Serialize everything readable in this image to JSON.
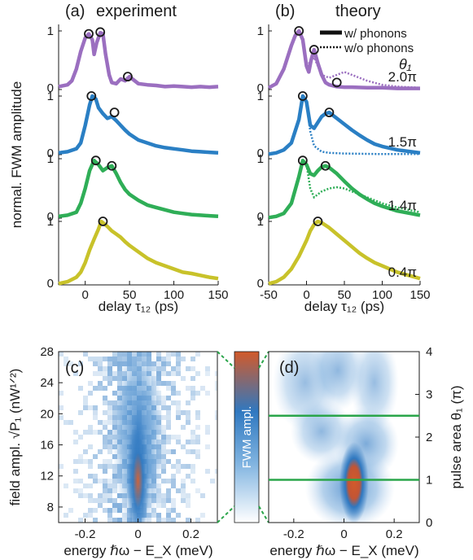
{
  "colors": {
    "violet": "#9b6fc0",
    "blue": "#2a7fc4",
    "green": "#2fae57",
    "yellow": "#c8c22a",
    "marker": "#1a1a1a",
    "line": "#2aa54a",
    "hot": "#d25a2a",
    "mid": "#2f78c0"
  },
  "chart_data": [
    {
      "type": "line",
      "panel": "(a)",
      "title": "experiment",
      "xlabel": "delay τ₁₂ (ps)",
      "ylabel": "normal. FWM amplitude",
      "xlim": [
        -30,
        150
      ],
      "x_ticks": [
        0,
        50,
        100,
        150
      ],
      "y_ticks": [
        "0",
        "1"
      ],
      "series": [
        {
          "color_key": "violet",
          "x": [
            -30,
            -20,
            -15,
            -10,
            -5,
            0,
            4,
            8,
            10,
            13,
            17,
            20,
            23,
            27,
            30,
            35,
            40,
            45,
            50,
            60,
            70,
            80,
            90,
            100,
            110,
            120,
            130,
            140,
            150
          ],
          "y": [
            0.05,
            0.08,
            0.15,
            0.35,
            0.65,
            0.88,
            0.95,
            0.85,
            0.6,
            0.8,
            0.97,
            0.95,
            0.6,
            0.25,
            0.12,
            0.1,
            0.18,
            0.15,
            0.22,
            0.1,
            0.08,
            0.07,
            0.05,
            0.06,
            0.05,
            0.04,
            0.05,
            0.04,
            0.05
          ],
          "markers_x": [
            4,
            17,
            48
          ],
          "markers_y": [
            0.95,
            0.98,
            0.22
          ]
        },
        {
          "color_key": "blue",
          "x": [
            -30,
            -20,
            -10,
            -5,
            0,
            5,
            8,
            12,
            15,
            20,
            25,
            30,
            35,
            40,
            45,
            50,
            60,
            70,
            80,
            90,
            100,
            110,
            120,
            130,
            140,
            150
          ],
          "y": [
            0.03,
            0.05,
            0.1,
            0.2,
            0.5,
            0.85,
            1.0,
            0.95,
            0.8,
            0.7,
            0.62,
            0.65,
            0.58,
            0.5,
            0.42,
            0.35,
            0.25,
            0.2,
            0.15,
            0.12,
            0.1,
            0.08,
            0.06,
            0.05,
            0.04,
            0.03
          ],
          "markers_x": [
            7,
            33
          ],
          "markers_y": [
            1.0,
            0.72
          ]
        },
        {
          "color_key": "green",
          "x": [
            -30,
            -20,
            -10,
            -5,
            0,
            5,
            10,
            15,
            20,
            25,
            30,
            35,
            40,
            45,
            50,
            60,
            70,
            80,
            90,
            100,
            110,
            120,
            130,
            140,
            150
          ],
          "y": [
            0.03,
            0.05,
            0.1,
            0.25,
            0.5,
            0.8,
            0.97,
            0.9,
            0.8,
            0.85,
            0.88,
            0.75,
            0.6,
            0.48,
            0.4,
            0.3,
            0.22,
            0.18,
            0.14,
            0.1,
            0.08,
            0.06,
            0.05,
            0.04,
            0.03
          ],
          "markers_x": [
            12,
            30
          ],
          "markers_y": [
            0.97,
            0.88
          ]
        },
        {
          "color_key": "yellow",
          "x": [
            -30,
            -20,
            -10,
            -5,
            0,
            5,
            10,
            15,
            18,
            20,
            25,
            30,
            35,
            40,
            45,
            50,
            60,
            70,
            80,
            90,
            100,
            110,
            120,
            130,
            140,
            150
          ],
          "y": [
            0.02,
            0.05,
            0.12,
            0.2,
            0.35,
            0.55,
            0.72,
            0.88,
            1.0,
            0.98,
            0.92,
            0.85,
            0.8,
            0.75,
            0.68,
            0.62,
            0.52,
            0.42,
            0.35,
            0.3,
            0.25,
            0.2,
            0.18,
            0.15,
            0.12,
            0.1
          ],
          "markers_x": [
            20
          ],
          "markers_y": [
            1.0
          ]
        }
      ]
    },
    {
      "type": "line",
      "panel": "(b)",
      "title": "theory",
      "xlabel": "delay τ₁₂ (ps)",
      "xlim": [
        -50,
        150
      ],
      "x_ticks": [
        -50,
        0,
        50,
        100,
        150
      ],
      "y_ticks": [
        "0",
        "1"
      ],
      "legend": {
        "solid": "w/ phonons",
        "dotted": "w/o phonons",
        "header": "θ₁",
        "position": "top-right"
      },
      "series": [
        {
          "label": "2.0π",
          "color_key": "violet",
          "solid_x": [
            -50,
            -40,
            -30,
            -20,
            -15,
            -10,
            -5,
            0,
            3,
            6,
            10,
            15,
            20,
            25,
            30,
            40,
            50,
            60,
            80,
            100,
            120,
            150
          ],
          "solid_y": [
            0.03,
            0.1,
            0.35,
            0.75,
            0.92,
            1.0,
            0.85,
            0.4,
            0.3,
            0.5,
            0.68,
            0.45,
            0.25,
            0.12,
            0.08,
            0.05,
            0.04,
            0.04,
            0.03,
            0.03,
            0.02,
            0.02
          ],
          "dotted_x": [
            0,
            10,
            20,
            30,
            40,
            50,
            60,
            80,
            100,
            120,
            150
          ],
          "dotted_y": [
            0.4,
            0.55,
            0.25,
            0.2,
            0.25,
            0.3,
            0.25,
            0.15,
            0.08,
            0.05,
            0.03
          ],
          "markers_x": [
            -10,
            10,
            40
          ],
          "markers_y": [
            1.0,
            0.68,
            0.12
          ]
        },
        {
          "label": "1.5π",
          "color_key": "blue",
          "solid_x": [
            -50,
            -40,
            -30,
            -20,
            -10,
            -5,
            0,
            5,
            10,
            15,
            20,
            25,
            30,
            40,
            50,
            60,
            70,
            80,
            90,
            100,
            120,
            150
          ],
          "solid_y": [
            0.01,
            0.03,
            0.08,
            0.2,
            0.6,
            1.0,
            0.9,
            0.5,
            0.45,
            0.55,
            0.65,
            0.7,
            0.72,
            0.62,
            0.52,
            0.42,
            0.33,
            0.25,
            0.18,
            0.14,
            0.08,
            0.03
          ],
          "dotted_x": [
            0,
            5,
            10,
            20,
            30,
            50,
            100,
            150
          ],
          "dotted_y": [
            0.9,
            0.4,
            0.15,
            0.05,
            0.03,
            0.02,
            0.01,
            0.01
          ],
          "markers_x": [
            -5,
            30
          ],
          "markers_y": [
            1.0,
            0.72
          ]
        },
        {
          "label": "1.4π",
          "color_key": "green",
          "solid_x": [
            -50,
            -40,
            -30,
            -20,
            -10,
            -5,
            0,
            5,
            10,
            15,
            20,
            25,
            30,
            40,
            50,
            60,
            70,
            80,
            90,
            100,
            120,
            150
          ],
          "solid_y": [
            0.01,
            0.03,
            0.08,
            0.25,
            0.7,
            0.97,
            0.9,
            0.75,
            0.72,
            0.8,
            0.86,
            0.88,
            0.85,
            0.75,
            0.62,
            0.5,
            0.4,
            0.32,
            0.25,
            0.2,
            0.12,
            0.05
          ],
          "dotted_x": [
            0,
            5,
            10,
            15,
            20,
            30,
            40,
            50,
            60,
            80,
            100,
            120,
            150
          ],
          "dotted_y": [
            0.9,
            0.5,
            0.35,
            0.4,
            0.45,
            0.5,
            0.52,
            0.5,
            0.45,
            0.35,
            0.25,
            0.18,
            0.1
          ],
          "markers_x": [
            -5,
            25
          ],
          "markers_y": [
            0.97,
            0.88
          ]
        },
        {
          "label": "0.4π",
          "color_key": "yellow",
          "solid_x": [
            -50,
            -40,
            -30,
            -20,
            -10,
            0,
            5,
            10,
            15,
            20,
            30,
            40,
            50,
            60,
            70,
            80,
            90,
            100,
            120,
            150
          ],
          "solid_y": [
            0.02,
            0.05,
            0.12,
            0.25,
            0.45,
            0.7,
            0.85,
            0.95,
            1.0,
            0.98,
            0.9,
            0.8,
            0.7,
            0.6,
            0.5,
            0.42,
            0.35,
            0.3,
            0.2,
            0.1
          ],
          "dotted_x": [
            -50,
            -40,
            -30,
            -20,
            -10,
            0,
            5,
            10,
            15,
            20,
            30,
            40,
            50,
            60,
            70,
            80,
            90,
            100,
            120,
            150
          ],
          "dotted_y": [
            0.02,
            0.05,
            0.12,
            0.25,
            0.45,
            0.7,
            0.85,
            0.95,
            1.0,
            0.98,
            0.9,
            0.8,
            0.7,
            0.6,
            0.5,
            0.42,
            0.35,
            0.3,
            0.2,
            0.1
          ],
          "markers_x": [
            15
          ],
          "markers_y": [
            1.0
          ]
        }
      ]
    },
    {
      "type": "heatmap",
      "panel": "(c)",
      "xlabel": "energy ℏω − E_X (meV)",
      "ylabel": "field ampl. √P₁ (nW¹ᐟ²)",
      "xlim": [
        -0.3,
        0.3
      ],
      "ylim": [
        6,
        28
      ],
      "x_ticks": [
        -0.2,
        0,
        0.2
      ],
      "x_tick_labels": [
        "-0.2",
        "0",
        "0.2"
      ],
      "y_ticks": [
        8,
        12,
        16,
        20,
        24,
        28
      ],
      "center_energy": 0.0
    },
    {
      "type": "heatmap",
      "panel": "(d)",
      "xlabel": "energy ℏω − E_X (meV)",
      "ylabel": "pulse area θ₁ (π)",
      "xlim": [
        -0.3,
        0.3
      ],
      "ylim": [
        0,
        4
      ],
      "x_ticks": [
        -0.2,
        0,
        0.2
      ],
      "x_tick_labels": [
        "-0.2",
        "0",
        "0.2"
      ],
      "y_ticks": [
        0,
        1,
        2,
        3,
        4
      ],
      "hlines": [
        1.0,
        2.5
      ],
      "center_energy": 0.04
    }
  ],
  "colorbar": {
    "label": "FWM ampl."
  }
}
